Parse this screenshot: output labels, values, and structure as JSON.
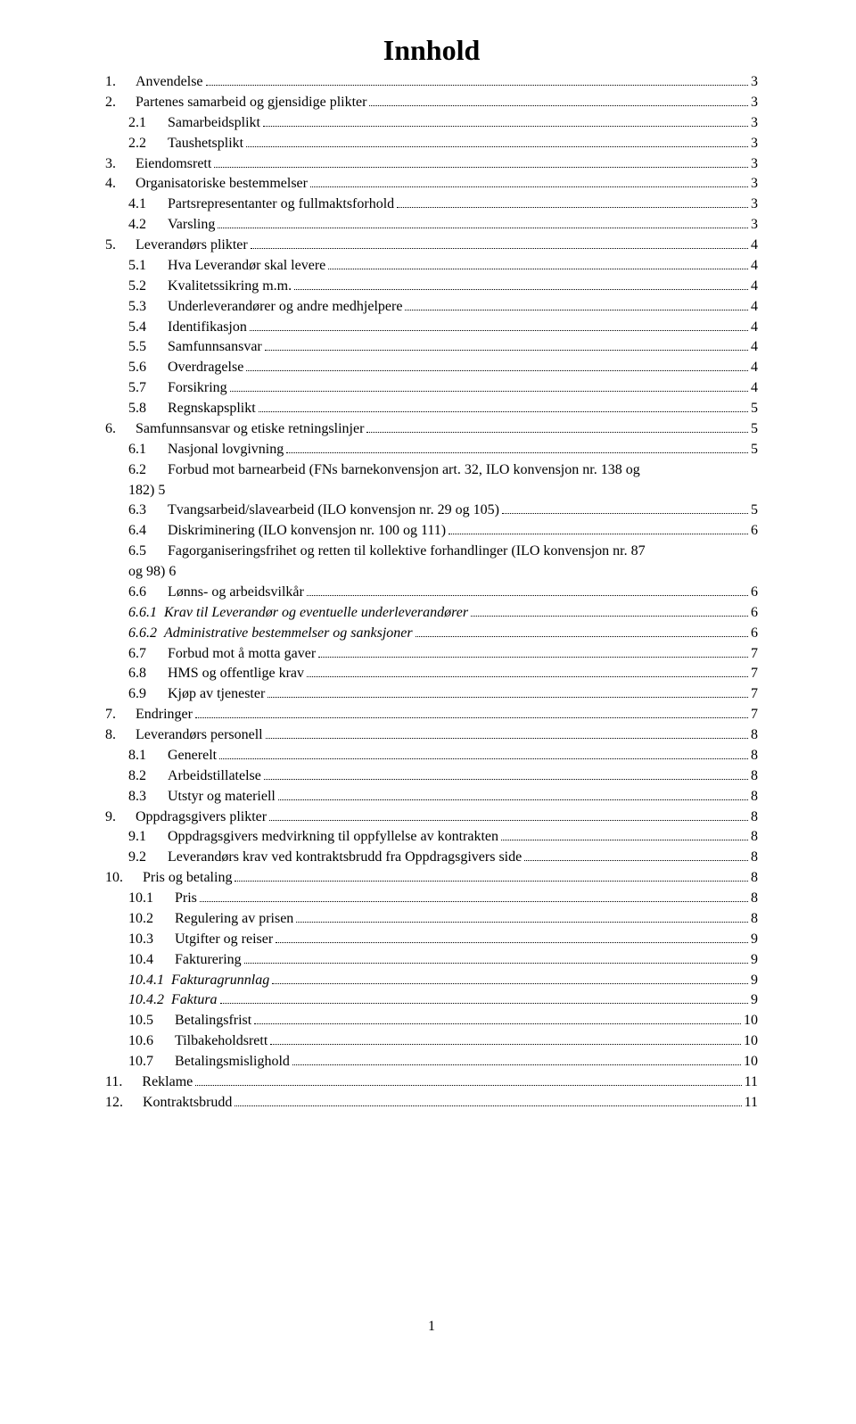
{
  "title": "Innhold",
  "footer_page": "1",
  "toc": [
    {
      "indent": 0,
      "num": "1.",
      "text": "Anvendelse",
      "page": "3"
    },
    {
      "indent": 0,
      "num": "2.",
      "text": "Partenes samarbeid og gjensidige plikter",
      "page": "3"
    },
    {
      "indent": 1,
      "num": "2.1",
      "text": "Samarbeidsplikt",
      "page": "3"
    },
    {
      "indent": 1,
      "num": "2.2",
      "text": "Taushetsplikt",
      "page": "3"
    },
    {
      "indent": 0,
      "num": "3.",
      "text": "Eiendomsrett",
      "page": "3"
    },
    {
      "indent": 0,
      "num": "4.",
      "text": "Organisatoriske bestemmelser",
      "page": "3"
    },
    {
      "indent": 1,
      "num": "4.1",
      "text": "Partsrepresentanter og fullmaktsforhold",
      "page": "3"
    },
    {
      "indent": 1,
      "num": "4.2",
      "text": "Varsling",
      "page": "3"
    },
    {
      "indent": 0,
      "num": "5.",
      "text": "Leverandørs plikter",
      "page": "4"
    },
    {
      "indent": 1,
      "num": "5.1",
      "text": "Hva Leverandør skal levere",
      "page": "4"
    },
    {
      "indent": 1,
      "num": "5.2",
      "text": "Kvalitetssikring m.m. ",
      "page": "4"
    },
    {
      "indent": 1,
      "num": "5.3",
      "text": "Underleverandører og andre medhjelpere",
      "page": "4"
    },
    {
      "indent": 1,
      "num": "5.4",
      "text": "Identifikasjon",
      "page": "4"
    },
    {
      "indent": 1,
      "num": "5.5",
      "text": "Samfunnsansvar",
      "page": "4"
    },
    {
      "indent": 1,
      "num": "5.6",
      "text": "Overdragelse",
      "page": "4"
    },
    {
      "indent": 1,
      "num": "5.7",
      "text": "Forsikring",
      "page": "4"
    },
    {
      "indent": 1,
      "num": "5.8",
      "text": "Regnskapsplikt",
      "page": "5"
    },
    {
      "indent": 0,
      "num": "6.",
      "text": "Samfunnsansvar og etiske retningslinjer",
      "page": "5"
    },
    {
      "indent": 1,
      "num": "6.1",
      "text": "Nasjonal lovgivning",
      "page": "5"
    },
    {
      "indent": 1,
      "num": "6.2",
      "text": "Forbud mot barnearbeid (FNs barnekonvensjon art. 32, ILO konvensjon nr. 138 og 182)",
      "page": "5",
      "wrap": true,
      "trail": "182)   5"
    },
    {
      "indent": 1,
      "num": "6.3",
      "text": "Tvangsarbeid/slavearbeid (ILO konvensjon nr. 29 og 105)",
      "page": "5"
    },
    {
      "indent": 1,
      "num": "6.4",
      "text": "Diskriminering (ILO konvensjon nr. 100 og 111)",
      "page": "6"
    },
    {
      "indent": 1,
      "num": "6.5",
      "text": "Fagorganiseringsfrihet og retten til kollektive forhandlinger (ILO konvensjon nr. 87 og 98)",
      "page": "6",
      "wrap": true,
      "trail": "og 98) 6"
    },
    {
      "indent": 1,
      "num": "6.6",
      "text": "Lønns- og arbeidsvilkår",
      "page": "6"
    },
    {
      "indent": 2,
      "num": "6.6.1",
      "text": "Krav til Leverandør og eventuelle underleverandører",
      "page": "6",
      "italic": true
    },
    {
      "indent": 2,
      "num": "6.6.2",
      "text": "Administrative bestemmelser og sanksjoner",
      "page": "6",
      "italic": true
    },
    {
      "indent": 1,
      "num": "6.7",
      "text": "Forbud mot å motta gaver",
      "page": "7"
    },
    {
      "indent": 1,
      "num": "6.8",
      "text": "HMS og offentlige krav",
      "page": "7"
    },
    {
      "indent": 1,
      "num": "6.9",
      "text": "Kjøp av tjenester",
      "page": "7"
    },
    {
      "indent": 0,
      "num": "7.",
      "text": "Endringer",
      "page": "7"
    },
    {
      "indent": 0,
      "num": "8.",
      "text": "Leverandørs personell",
      "page": "8"
    },
    {
      "indent": 1,
      "num": "8.1",
      "text": "Generelt",
      "page": "8"
    },
    {
      "indent": 1,
      "num": "8.2",
      "text": "Arbeidstillatelse",
      "page": "8"
    },
    {
      "indent": 1,
      "num": "8.3",
      "text": "Utstyr og materiell",
      "page": "8"
    },
    {
      "indent": 0,
      "num": "9.",
      "text": "Oppdragsgivers plikter",
      "page": "8"
    },
    {
      "indent": 1,
      "num": "9.1",
      "text": "Oppdragsgivers medvirkning til oppfyllelse av kontrakten",
      "page": "8"
    },
    {
      "indent": 1,
      "num": "9.2",
      "text": "Leverandørs krav ved kontraktsbrudd fra Oppdragsgivers side",
      "page": "8"
    },
    {
      "indent": 0,
      "num": "10.",
      "text": "Pris og betaling",
      "page": "8"
    },
    {
      "indent": 1,
      "num": "10.1",
      "text": "Pris",
      "page": "8"
    },
    {
      "indent": 1,
      "num": "10.2",
      "text": "Regulering av prisen",
      "page": "8"
    },
    {
      "indent": 1,
      "num": "10.3",
      "text": "Utgifter og reiser",
      "page": "9"
    },
    {
      "indent": 1,
      "num": "10.4",
      "text": "Fakturering",
      "page": "9"
    },
    {
      "indent": 2,
      "num": "10.4.1",
      "text": "Fakturagrunnlag",
      "page": "9",
      "italic": true
    },
    {
      "indent": 2,
      "num": "10.4.2",
      "text": "Faktura",
      "page": "9",
      "italic": true
    },
    {
      "indent": 1,
      "num": "10.5",
      "text": "Betalingsfrist",
      "page": "10"
    },
    {
      "indent": 1,
      "num": "10.6",
      "text": "Tilbakeholdsrett",
      "page": "10"
    },
    {
      "indent": 1,
      "num": "10.7",
      "text": "Betalingsmislighold",
      "page": "10"
    },
    {
      "indent": 0,
      "num": "11.",
      "text": "Reklame",
      "page": "11"
    },
    {
      "indent": 0,
      "num": "12.",
      "text": "Kontraktsbrudd",
      "page": "11"
    }
  ]
}
